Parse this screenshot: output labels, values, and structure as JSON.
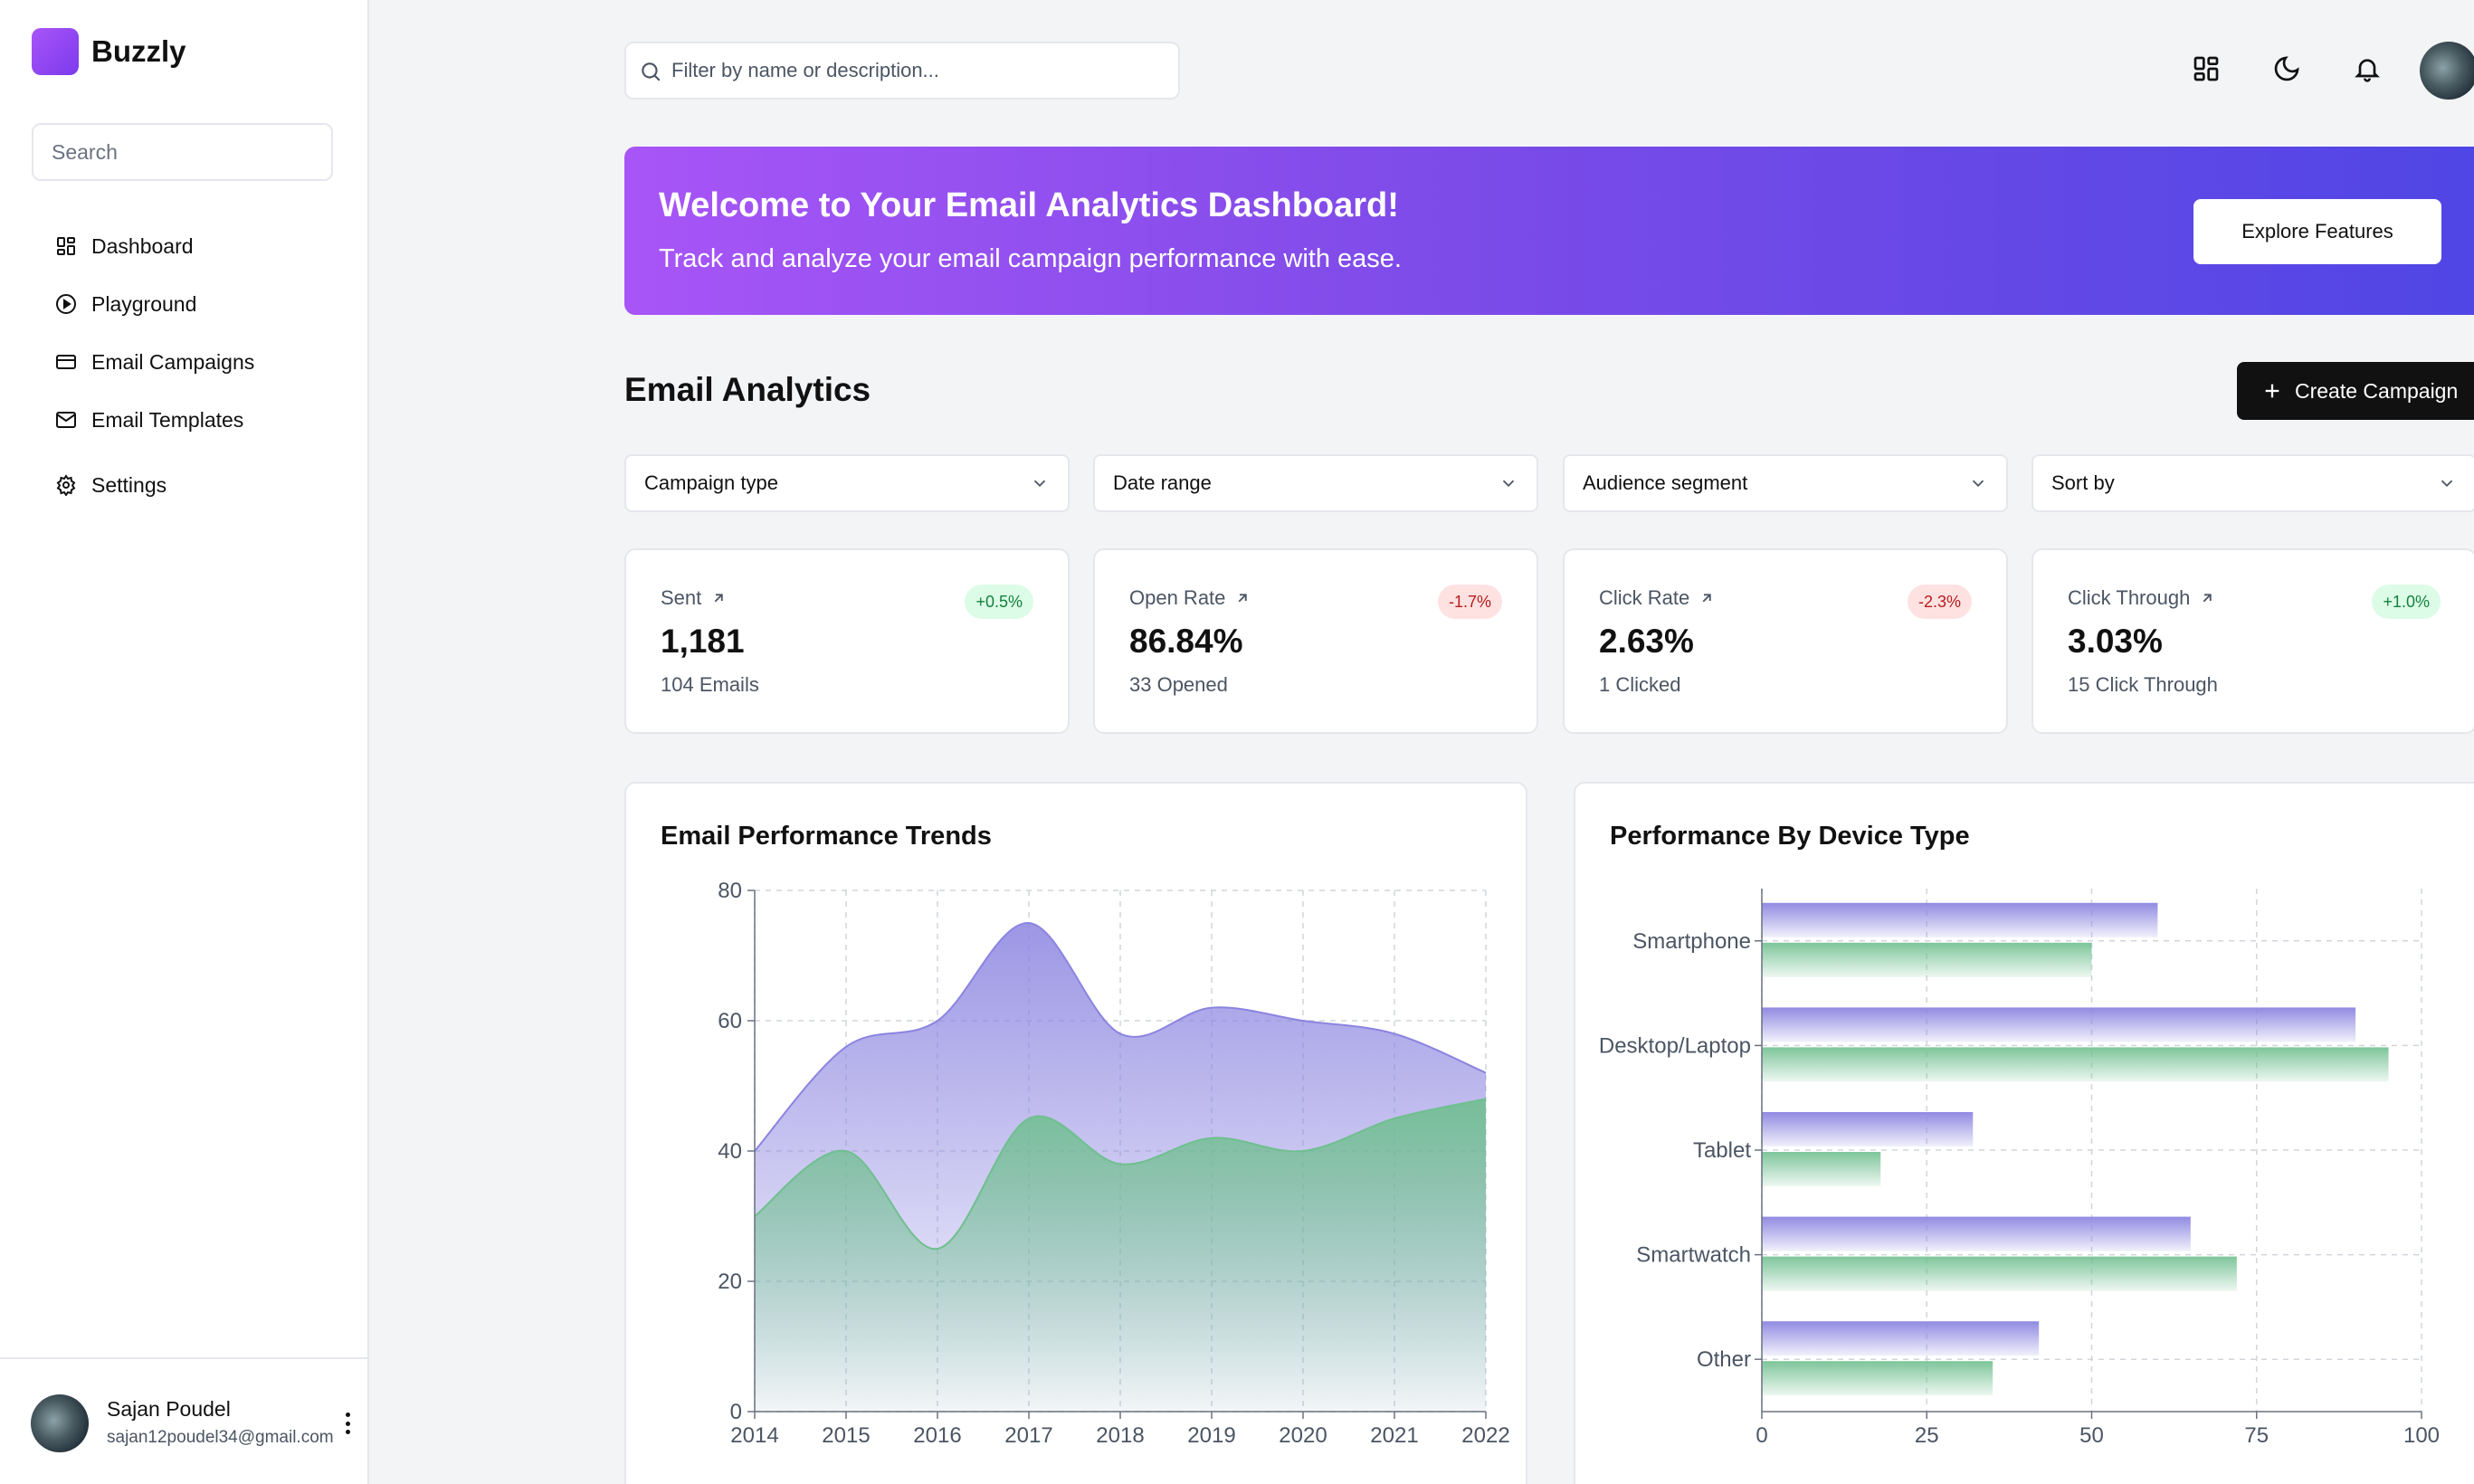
{
  "app": {
    "name": "Buzzly"
  },
  "sidebar": {
    "search_placeholder": "Search",
    "items": [
      {
        "label": "Dashboard",
        "icon": "dashboard-icon"
      },
      {
        "label": "Playground",
        "icon": "play-circle-icon"
      },
      {
        "label": "Email Campaigns",
        "icon": "credit-card-icon"
      },
      {
        "label": "Email Templates",
        "icon": "mail-icon"
      },
      {
        "label": "Settings",
        "icon": "gear-icon"
      }
    ],
    "user": {
      "name": "Sajan Poudel",
      "email": "sajan12poudel34@gmail.com"
    }
  },
  "topbar": {
    "filter_placeholder": "Filter by name or description...",
    "icons": [
      "dashboard-icon",
      "moon-icon",
      "bell-icon"
    ]
  },
  "banner": {
    "title": "Welcome to Your Email Analytics Dashboard!",
    "subtitle": "Track and analyze your email campaign performance with ease.",
    "button": "Explore Features"
  },
  "analytics": {
    "title": "Email Analytics",
    "create_button": "Create Campaign",
    "filters": [
      "Campaign type",
      "Date range",
      "Audience segment",
      "Sort by"
    ],
    "stats": [
      {
        "label": "Sent",
        "value": "1,181",
        "sub": "104 Emails",
        "change": "+0.5%",
        "trend": "positive"
      },
      {
        "label": "Open Rate",
        "value": "86.84%",
        "sub": "33 Opened",
        "change": "-1.7%",
        "trend": "negative"
      },
      {
        "label": "Click Rate",
        "value": "2.63%",
        "sub": "1 Clicked",
        "change": "-2.3%",
        "trend": "negative"
      },
      {
        "label": "Click Through",
        "value": "3.03%",
        "sub": "15 Click Through",
        "change": "+1.0%",
        "trend": "positive"
      }
    ]
  },
  "colors": {
    "primary": "#8b84e0",
    "secondary": "#6fbf8f",
    "accent_start": "#a855f7",
    "accent_end": "#4f46e5"
  },
  "chart_data": [
    {
      "type": "area",
      "title": "Email Performance Trends",
      "x": [
        "2014",
        "2015",
        "2016",
        "2017",
        "2018",
        "2019",
        "2020",
        "2021",
        "2022"
      ],
      "ylim": [
        0,
        80
      ],
      "yticks": [
        0,
        20,
        40,
        60,
        80
      ],
      "grid": true,
      "series": [
        {
          "values": [
            40,
            56,
            60,
            75,
            58,
            62,
            60,
            58,
            52
          ],
          "color": "#8b84e0"
        },
        {
          "values": [
            30,
            40,
            25,
            45,
            38,
            42,
            40,
            45,
            48
          ],
          "color": "#6fbf8f"
        }
      ]
    },
    {
      "type": "bar",
      "orientation": "horizontal",
      "title": "Performance By Device Type",
      "categories": [
        "Smartphone",
        "Desktop/Laptop",
        "Tablet",
        "Smartwatch",
        "Other"
      ],
      "xlim": [
        0,
        100
      ],
      "xticks": [
        0,
        25,
        50,
        75,
        100
      ],
      "grid": true,
      "series": [
        {
          "values": [
            60,
            90,
            32,
            65,
            42
          ],
          "color": "#8b84e0"
        },
        {
          "values": [
            50,
            95,
            18,
            72,
            35
          ],
          "color": "#6fbf8f"
        }
      ]
    }
  ]
}
